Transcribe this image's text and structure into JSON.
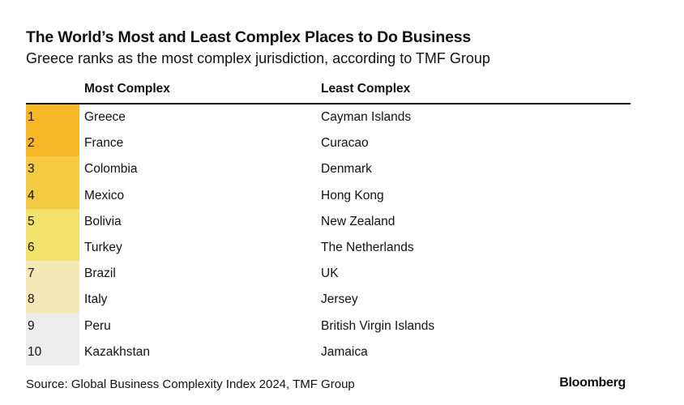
{
  "header": {
    "title": "The World’s Most and Least Complex Places to Do Business",
    "subtitle": "Greece ranks as the most complex jurisdiction, according to TMF Group"
  },
  "table": {
    "columns": [
      "Most Complex",
      "Least Complex"
    ],
    "rows": [
      [
        "1",
        "Greece",
        "Cayman Islands"
      ],
      [
        "2",
        "France",
        "Curacao"
      ],
      [
        "3",
        "Colombia",
        "Denmark"
      ],
      [
        "4",
        "Mexico",
        "Hong Kong"
      ],
      [
        "5",
        "Bolivia",
        "New Zealand"
      ],
      [
        "6",
        "Turkey",
        "The Netherlands"
      ],
      [
        "7",
        "Brazil",
        "UK"
      ],
      [
        "8",
        "Italy",
        "Jersey"
      ],
      [
        "9",
        "Peru",
        "British Virgin Islands"
      ],
      [
        "10",
        "Kazakhstan",
        "Jamaica"
      ]
    ]
  },
  "footer": {
    "source": "Source: Global Business Complexity Index 2024, TMF Group",
    "brand": "Bloomberg"
  }
}
